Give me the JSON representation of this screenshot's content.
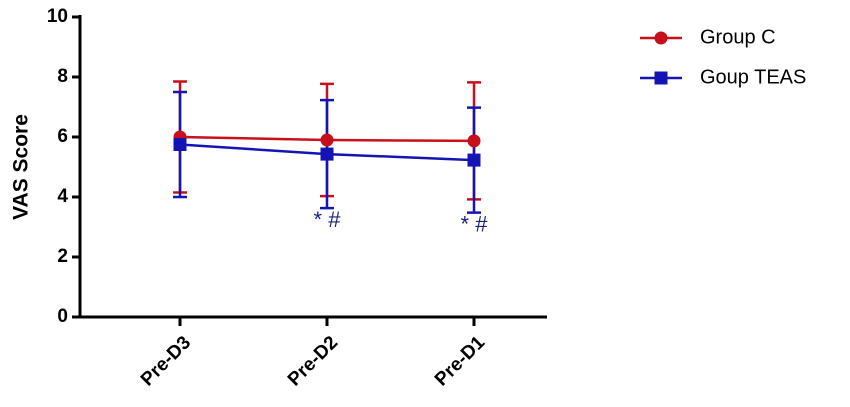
{
  "chart_data": {
    "type": "line",
    "y_label": "VAS  Score",
    "categories": [
      "Pre-D3",
      "Pre-D2",
      "Pre-D1"
    ],
    "ylim": [
      0,
      10
    ],
    "yticks": [
      0,
      2,
      4,
      6,
      8,
      10
    ],
    "series": [
      {
        "name": "Group C",
        "color": "#c8101a",
        "marker": "circle",
        "values": [
          6.0,
          5.9,
          5.87
        ],
        "errors": [
          1.85,
          1.87,
          1.95
        ]
      },
      {
        "name": "Goup TEAS",
        "color": "#1414b4",
        "marker": "square",
        "values": [
          5.75,
          5.43,
          5.23
        ],
        "errors": [
          1.75,
          1.8,
          1.75
        ]
      }
    ],
    "annotations": [
      {
        "text": "* #",
        "category": 1,
        "color": "#1a237e"
      },
      {
        "text": "* #",
        "category": 2,
        "color": "#1a237e"
      }
    ]
  }
}
